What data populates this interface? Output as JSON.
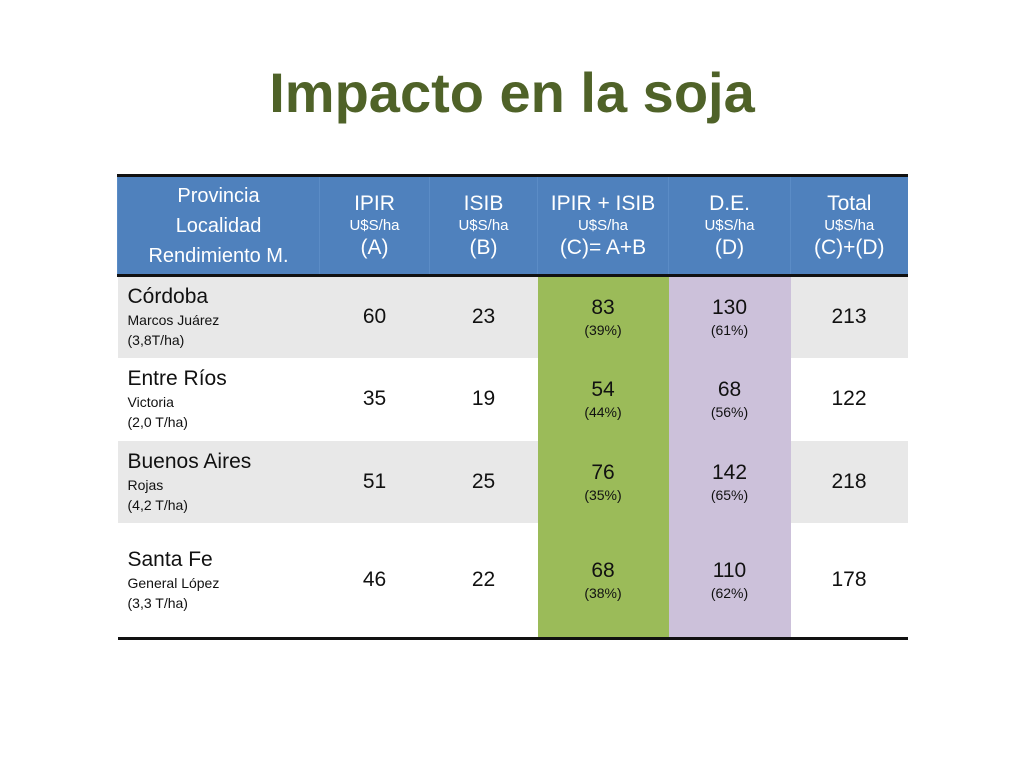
{
  "slide": {
    "title": "Impacto en la soja"
  },
  "colors": {
    "title": "#4f6228",
    "header": "#4f81bd",
    "ab_col": "#9bbb59",
    "d_col": "#ccc1da",
    "row_shade": "#e8e8e8"
  },
  "table": {
    "headers": [
      {
        "l1": "Provincia",
        "l2": "Localidad",
        "l3": "Rendimiento M."
      },
      {
        "l1": "IPIR",
        "l2": "U$S/ha",
        "l3": "(A)"
      },
      {
        "l1": "ISIB",
        "l2": "U$S/ha",
        "l3": "(B)"
      },
      {
        "l1": "IPIR + ISIB",
        "l2": "U$S/ha",
        "l3": "(C)= A+B"
      },
      {
        "l1": "D.E.",
        "l2": "U$S/ha",
        "l3": "(D)"
      },
      {
        "l1": "Total",
        "l2": "U$S/ha",
        "l3": "(C)+(D)"
      }
    ],
    "rows": [
      {
        "province": "Córdoba",
        "locality": "Marcos Juárez",
        "yield": "(3,8T/ha)",
        "ipir": "60",
        "isib": "23",
        "c_value": "83",
        "c_pct": "(39%)",
        "d_value": "130",
        "d_pct": "(61%)",
        "total": "213"
      },
      {
        "province": "Entre Ríos",
        "locality": "Victoria",
        "yield": "(2,0 T/ha)",
        "ipir": "35",
        "isib": "19",
        "c_value": "54",
        "c_pct": "(44%)",
        "d_value": "68",
        "d_pct": "(56%)",
        "total": "122"
      },
      {
        "province": "Buenos Aires",
        "locality": "Rojas",
        "yield": "(4,2 T/ha)",
        "ipir": "51",
        "isib": "25",
        "c_value": "76",
        "c_pct": "(35%)",
        "d_value": "142",
        "d_pct": "(65%)",
        "total": "218"
      },
      {
        "province": "Santa Fe",
        "locality": "General López",
        "yield": "(3,3 T/ha)",
        "ipir": "46",
        "isib": "22",
        "c_value": "68",
        "c_pct": "(38%)",
        "d_value": "110",
        "d_pct": "(62%)",
        "total": "178"
      }
    ]
  }
}
